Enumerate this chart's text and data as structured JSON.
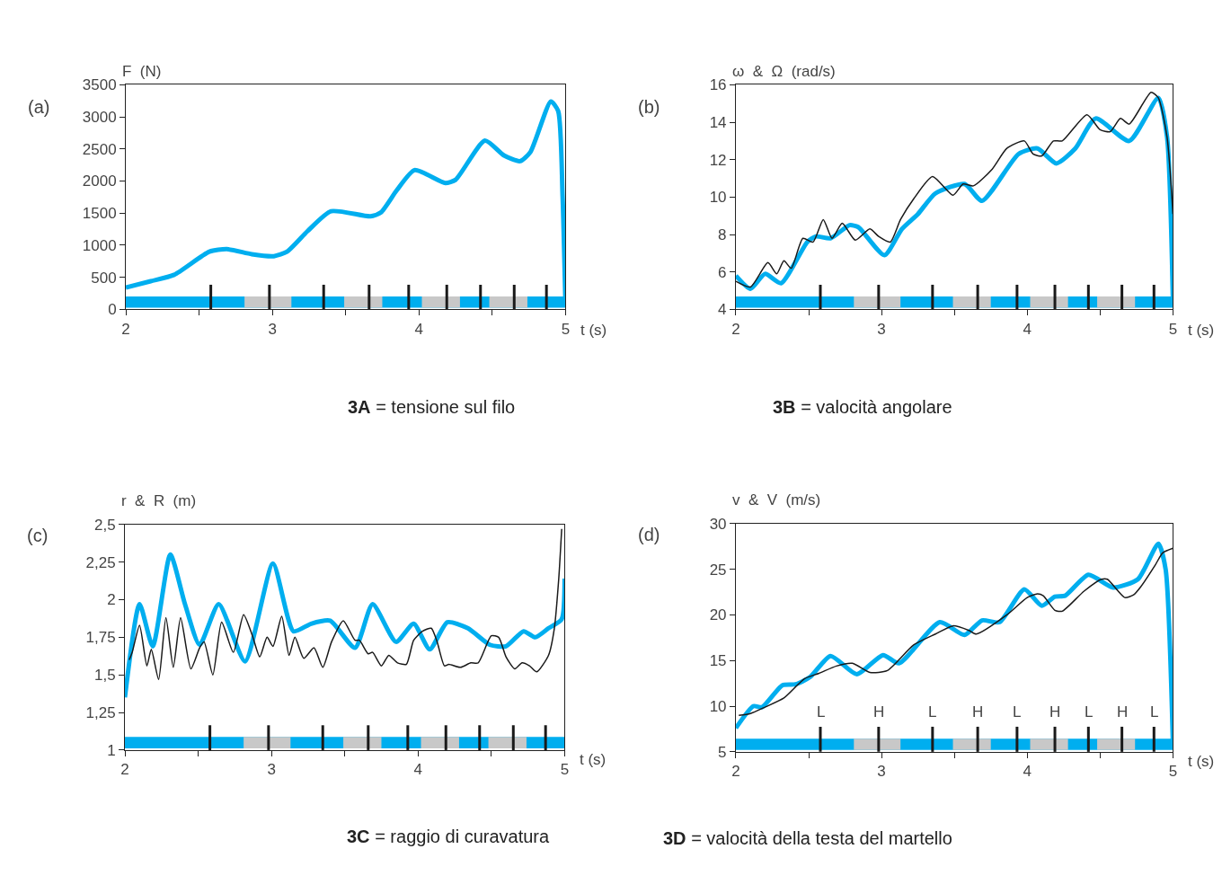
{
  "chart_data": [
    {
      "type": "line",
      "title": "3A = tensione sul filo",
      "xlabel": "t (s)",
      "ylabel": "F  (N)",
      "annotations": [
        "(a)"
      ],
      "xlim": [
        2,
        5
      ],
      "ylim": [
        0,
        3500
      ],
      "xticks": [
        2,
        {
          "value": 2.5,
          "label": null
        },
        3,
        {
          "value": 3.5,
          "label": null
        },
        4,
        {
          "value": 4.5,
          "label": null
        },
        5
      ],
      "yticks": [
        0,
        500,
        1000,
        1500,
        2000,
        2500,
        3000,
        3500
      ],
      "grid": false,
      "bands": [
        {
          "axis": "x",
          "from": 2,
          "to": 5,
          "color": "#00aeef"
        },
        {
          "axis": "x",
          "from": 2.81,
          "to": 3.13,
          "color": "#c8c8c8"
        },
        {
          "axis": "x",
          "from": 3.49,
          "to": 3.75,
          "color": "#c8c8c8"
        },
        {
          "axis": "x",
          "from": 4.02,
          "to": 4.28,
          "color": "#c8c8c8"
        },
        {
          "axis": "x",
          "from": 4.48,
          "to": 4.74,
          "color": "#c8c8c8"
        }
      ],
      "ref_lines": [
        {
          "axis": "x",
          "value": 2.58,
          "color": "#1a1a1a"
        },
        {
          "axis": "x",
          "value": 2.98,
          "color": "#1a1a1a"
        },
        {
          "axis": "x",
          "value": 3.35,
          "color": "#1a1a1a"
        },
        {
          "axis": "x",
          "value": 3.66,
          "color": "#1a1a1a"
        },
        {
          "axis": "x",
          "value": 3.93,
          "color": "#1a1a1a"
        },
        {
          "axis": "x",
          "value": 4.19,
          "color": "#1a1a1a"
        },
        {
          "axis": "x",
          "value": 4.42,
          "color": "#1a1a1a"
        },
        {
          "axis": "x",
          "value": 4.65,
          "color": "#1a1a1a"
        },
        {
          "axis": "x",
          "value": 4.87,
          "color": "#1a1a1a"
        }
      ],
      "series": [
        {
          "color": "#00aeef",
          "x": [
            2.0,
            2.17,
            2.33,
            2.57,
            2.69,
            2.86,
            3.01,
            3.1,
            3.24,
            3.4,
            3.67,
            3.74,
            3.85,
            3.97,
            4.18,
            4.25,
            4.45,
            4.58,
            4.69,
            4.76,
            4.9,
            4.95,
            4.98,
            5.0
          ],
          "values": [
            340,
            440,
            540,
            900,
            940,
            860,
            830,
            900,
            1220,
            1530,
            1450,
            1510,
            1860,
            2170,
            1970,
            2020,
            2630,
            2400,
            2310,
            2450,
            3240,
            3090,
            1770,
            50
          ]
        }
      ]
    },
    {
      "type": "line",
      "title": "3B = valocità angolare",
      "xlabel": "t (s)",
      "ylabel": "ω  &  Ω  (rad/s)",
      "annotations": [
        "(b)"
      ],
      "xlim": [
        2,
        5
      ],
      "ylim": [
        4,
        16
      ],
      "xticks": [
        2,
        {
          "value": 2.5,
          "label": null
        },
        3,
        {
          "value": 3.5,
          "label": null
        },
        4,
        {
          "value": 4.5,
          "label": null
        },
        5
      ],
      "yticks": [
        4,
        6,
        8,
        10,
        12,
        14,
        16
      ],
      "grid": false,
      "bands": [
        {
          "axis": "x",
          "from": 2,
          "to": 5,
          "color": "#00aeef"
        },
        {
          "axis": "x",
          "from": 2.81,
          "to": 3.13,
          "color": "#c8c8c8"
        },
        {
          "axis": "x",
          "from": 3.49,
          "to": 3.75,
          "color": "#c8c8c8"
        },
        {
          "axis": "x",
          "from": 4.02,
          "to": 4.28,
          "color": "#c8c8c8"
        },
        {
          "axis": "x",
          "from": 4.48,
          "to": 4.74,
          "color": "#c8c8c8"
        }
      ],
      "ref_lines": [
        {
          "axis": "x",
          "value": 2.58,
          "color": "#1a1a1a"
        },
        {
          "axis": "x",
          "value": 2.98,
          "color": "#1a1a1a"
        },
        {
          "axis": "x",
          "value": 3.35,
          "color": "#1a1a1a"
        },
        {
          "axis": "x",
          "value": 3.66,
          "color": "#1a1a1a"
        },
        {
          "axis": "x",
          "value": 3.93,
          "color": "#1a1a1a"
        },
        {
          "axis": "x",
          "value": 4.19,
          "color": "#1a1a1a"
        },
        {
          "axis": "x",
          "value": 4.42,
          "color": "#1a1a1a"
        },
        {
          "axis": "x",
          "value": 4.65,
          "color": "#1a1a1a"
        },
        {
          "axis": "x",
          "value": 4.87,
          "color": "#1a1a1a"
        }
      ],
      "series": [
        {
          "color": "#00aeef",
          "x": [
            2.0,
            2.1,
            2.2,
            2.31,
            2.49,
            2.55,
            2.65,
            2.78,
            2.84,
            3.02,
            3.14,
            3.25,
            3.37,
            3.57,
            3.69,
            3.94,
            4.07,
            4.2,
            4.33,
            4.47,
            4.7,
            4.9,
            4.96,
            5.0
          ],
          "values": [
            5.8,
            5.1,
            5.9,
            5.4,
            7.6,
            7.9,
            7.8,
            8.5,
            8.4,
            6.9,
            8.3,
            9.1,
            10.2,
            10.7,
            9.8,
            12.3,
            12.6,
            11.8,
            12.6,
            14.2,
            13.0,
            15.3,
            13.2,
            4.5
          ]
        },
        {
          "color": "#1a1a1a",
          "x": [
            2.0,
            2.1,
            2.22,
            2.28,
            2.33,
            2.38,
            2.46,
            2.53,
            2.6,
            2.66,
            2.73,
            2.82,
            2.92,
            2.98,
            3.06,
            3.13,
            3.22,
            3.35,
            3.49,
            3.56,
            3.63,
            3.76,
            3.86,
            3.98,
            4.04,
            4.1,
            4.18,
            4.24,
            4.41,
            4.5,
            4.57,
            4.64,
            4.7,
            4.85,
            4.9,
            4.96,
            5.0
          ],
          "values": [
            5.5,
            5.2,
            6.5,
            5.9,
            6.6,
            6.2,
            7.8,
            7.6,
            8.8,
            7.8,
            8.6,
            7.7,
            8.3,
            7.9,
            7.6,
            8.8,
            9.9,
            11.1,
            10.1,
            10.7,
            10.6,
            11.5,
            12.6,
            13.0,
            12.3,
            12.2,
            13.0,
            13.0,
            14.4,
            13.6,
            13.5,
            14.2,
            13.9,
            15.6,
            15.3,
            13.2,
            9.1
          ]
        }
      ]
    },
    {
      "type": "line",
      "title": "3C = raggio di curavatura",
      "xlabel": "t (s)",
      "ylabel": "r  &  R  (m)",
      "annotations": [
        "(c)"
      ],
      "xlim": [
        2,
        5
      ],
      "ylim": [
        1,
        2.5
      ],
      "xticks": [
        2,
        {
          "value": 2.5,
          "label": null
        },
        3,
        {
          "value": 3.5,
          "label": null
        },
        4,
        {
          "value": 4.5,
          "label": null
        },
        5
      ],
      "yticks": [
        1,
        {
          "value": 1.25,
          "label": "1,25"
        },
        {
          "value": 1.5,
          "label": "1,5"
        },
        {
          "value": 1.75,
          "label": "1,75"
        },
        2,
        {
          "value": 2.25,
          "label": "2,25"
        },
        {
          "value": 2.5,
          "label": "2,5"
        }
      ],
      "grid": false,
      "bands": [
        {
          "axis": "x",
          "from": 2,
          "to": 5,
          "color": "#00aeef"
        },
        {
          "axis": "x",
          "from": 2.81,
          "to": 3.13,
          "color": "#c8c8c8"
        },
        {
          "axis": "x",
          "from": 3.49,
          "to": 3.75,
          "color": "#c8c8c8"
        },
        {
          "axis": "x",
          "from": 4.02,
          "to": 4.28,
          "color": "#c8c8c8"
        },
        {
          "axis": "x",
          "from": 4.48,
          "to": 4.74,
          "color": "#c8c8c8"
        }
      ],
      "ref_lines": [
        {
          "axis": "x",
          "value": 2.58,
          "color": "#1a1a1a"
        },
        {
          "axis": "x",
          "value": 2.98,
          "color": "#1a1a1a"
        },
        {
          "axis": "x",
          "value": 3.35,
          "color": "#1a1a1a"
        },
        {
          "axis": "x",
          "value": 3.66,
          "color": "#1a1a1a"
        },
        {
          "axis": "x",
          "value": 3.93,
          "color": "#1a1a1a"
        },
        {
          "axis": "x",
          "value": 4.19,
          "color": "#1a1a1a"
        },
        {
          "axis": "x",
          "value": 4.42,
          "color": "#1a1a1a"
        },
        {
          "axis": "x",
          "value": 4.65,
          "color": "#1a1a1a"
        },
        {
          "axis": "x",
          "value": 4.87,
          "color": "#1a1a1a"
        }
      ],
      "series": [
        {
          "color": "#00aeef",
          "x": [
            2.0,
            2.1,
            2.19,
            2.31,
            2.41,
            2.51,
            2.64,
            2.82,
            3.01,
            3.15,
            3.27,
            3.4,
            3.57,
            3.69,
            3.85,
            3.97,
            4.08,
            4.2,
            4.34,
            4.49,
            4.6,
            4.72,
            4.8,
            4.89,
            4.98,
            5.0
          ],
          "values": [
            1.35,
            1.97,
            1.69,
            2.3,
            1.97,
            1.7,
            1.97,
            1.59,
            2.24,
            1.79,
            1.84,
            1.86,
            1.68,
            1.97,
            1.72,
            1.84,
            1.67,
            1.85,
            1.81,
            1.7,
            1.69,
            1.79,
            1.75,
            1.81,
            1.87,
            2.14
          ]
        },
        {
          "color": "#1a1a1a",
          "x": [
            2.03,
            2.05,
            2.1,
            2.15,
            2.18,
            2.23,
            2.28,
            2.33,
            2.38,
            2.45,
            2.51,
            2.54,
            2.6,
            2.66,
            2.74,
            2.81,
            2.87,
            2.92,
            2.97,
            3.01,
            3.07,
            3.12,
            3.16,
            3.22,
            3.29,
            3.35,
            3.41,
            3.49,
            3.57,
            3.6,
            3.66,
            3.69,
            3.75,
            3.8,
            3.86,
            3.92,
            3.97,
            4.03,
            4.09,
            4.13,
            4.18,
            4.21,
            4.29,
            4.36,
            4.41,
            4.5,
            4.55,
            4.6,
            4.66,
            4.71,
            4.76,
            4.81,
            4.89,
            4.93,
            4.96,
            4.98
          ],
          "values": [
            1.6,
            1.65,
            1.83,
            1.56,
            1.67,
            1.47,
            1.88,
            1.55,
            1.88,
            1.54,
            1.68,
            1.72,
            1.5,
            1.85,
            1.65,
            1.9,
            1.76,
            1.62,
            1.75,
            1.69,
            1.89,
            1.63,
            1.75,
            1.61,
            1.68,
            1.55,
            1.72,
            1.86,
            1.73,
            1.73,
            1.64,
            1.65,
            1.56,
            1.63,
            1.58,
            1.57,
            1.73,
            1.79,
            1.81,
            1.72,
            1.56,
            1.57,
            1.55,
            1.58,
            1.58,
            1.76,
            1.75,
            1.62,
            1.54,
            1.58,
            1.56,
            1.52,
            1.63,
            1.81,
            2.14,
            2.47
          ]
        }
      ]
    },
    {
      "type": "line",
      "title": "3D = valocità della testa del martello",
      "xlabel": "t (s)",
      "ylabel": "v  &  V  (m/s)",
      "xlim": [
        2,
        5
      ],
      "ylim": [
        5,
        30
      ],
      "annotations": [
        "(d)",
        "L",
        "H",
        "L",
        "H",
        "L",
        "H",
        "L",
        "H",
        "L"
      ],
      "xticks": [
        2,
        {
          "value": 2.5,
          "label": null
        },
        3,
        {
          "value": 3.5,
          "label": null
        },
        4,
        {
          "value": 4.5,
          "label": null
        },
        5
      ],
      "yticks": [
        5,
        10,
        15,
        20,
        25,
        30
      ],
      "grid": false,
      "bands": [
        {
          "axis": "x",
          "from": 2,
          "to": 5,
          "color": "#00aeef"
        },
        {
          "axis": "x",
          "from": 2.81,
          "to": 3.13,
          "color": "#c8c8c8"
        },
        {
          "axis": "x",
          "from": 3.49,
          "to": 3.75,
          "color": "#c8c8c8"
        },
        {
          "axis": "x",
          "from": 4.02,
          "to": 4.28,
          "color": "#c8c8c8"
        },
        {
          "axis": "x",
          "from": 4.48,
          "to": 4.74,
          "color": "#c8c8c8"
        }
      ],
      "ref_lines": [
        {
          "axis": "x",
          "value": 2.58,
          "color": "#1a1a1a"
        },
        {
          "axis": "x",
          "value": 2.98,
          "color": "#1a1a1a"
        },
        {
          "axis": "x",
          "value": 3.35,
          "color": "#1a1a1a"
        },
        {
          "axis": "x",
          "value": 3.66,
          "color": "#1a1a1a"
        },
        {
          "axis": "x",
          "value": 3.93,
          "color": "#1a1a1a"
        },
        {
          "axis": "x",
          "value": 4.19,
          "color": "#1a1a1a"
        },
        {
          "axis": "x",
          "value": 4.42,
          "color": "#1a1a1a"
        },
        {
          "axis": "x",
          "value": 4.65,
          "color": "#1a1a1a"
        },
        {
          "axis": "x",
          "value": 4.87,
          "color": "#1a1a1a"
        }
      ],
      "series": [
        {
          "color": "#00aeef",
          "x": [
            2.0,
            2.12,
            2.18,
            2.32,
            2.41,
            2.51,
            2.65,
            2.83,
            3.01,
            3.12,
            3.4,
            3.57,
            3.69,
            3.81,
            3.98,
            4.1,
            4.19,
            4.26,
            4.42,
            4.59,
            4.76,
            4.9,
            4.95,
            5.0
          ],
          "values": [
            7.6,
            10.0,
            9.9,
            12.3,
            12.4,
            13.2,
            15.5,
            13.5,
            15.6,
            14.7,
            19.2,
            17.8,
            19.4,
            19.2,
            22.8,
            21.0,
            22.0,
            22.1,
            24.4,
            23.0,
            23.9,
            27.8,
            25.0,
            6.0
          ]
        },
        {
          "color": "#1a1a1a",
          "x": [
            2.02,
            2.1,
            2.2,
            2.33,
            2.47,
            2.57,
            2.69,
            2.8,
            2.92,
            3.04,
            3.22,
            3.37,
            3.49,
            3.6,
            3.65,
            3.86,
            4.0,
            4.07,
            4.11,
            4.19,
            4.24,
            4.39,
            4.51,
            4.55,
            4.67,
            4.73,
            4.78,
            4.88,
            4.93,
            5.0
          ],
          "values": [
            9.0,
            9.2,
            9.9,
            10.9,
            13.0,
            13.6,
            14.4,
            14.7,
            13.7,
            13.9,
            16.7,
            17.9,
            18.8,
            18.3,
            17.9,
            20.0,
            21.9,
            22.3,
            22.1,
            20.5,
            20.4,
            22.6,
            23.9,
            23.9,
            21.9,
            22.2,
            23.1,
            25.5,
            26.8,
            27.3
          ]
        }
      ]
    }
  ]
}
